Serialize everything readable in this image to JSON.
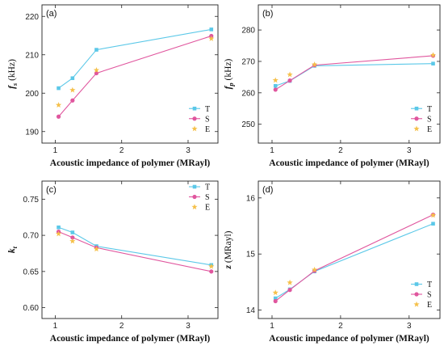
{
  "chart_data": [
    {
      "panel": "(a)",
      "type": "line",
      "xlabel": "Acoustic impedance of polymer (MRayl)",
      "ylabel": "fs (kHz)",
      "ylabel_main": "f",
      "ylabel_sub": "s",
      "ylabel_unit": " (kHz)",
      "xlim": [
        0.8,
        3.45
      ],
      "ylim": [
        187,
        223
      ],
      "xticks": [
        1,
        2,
        3
      ],
      "yticks": [
        190,
        200,
        210,
        220
      ],
      "legend_position": "right",
      "series": [
        {
          "name": "T",
          "marker": "square",
          "color": "#5bc8e8",
          "line": true,
          "x": [
            1.05,
            1.26,
            1.62,
            3.35
          ],
          "y": [
            201.3,
            203.9,
            211.3,
            216.6
          ]
        },
        {
          "name": "S",
          "marker": "circle",
          "color": "#e0569e",
          "line": true,
          "x": [
            1.05,
            1.26,
            1.62,
            3.35
          ],
          "y": [
            193.9,
            198.1,
            205.2,
            214.9
          ]
        },
        {
          "name": "E",
          "marker": "star",
          "color": "#f5c04a",
          "line": false,
          "x": [
            1.05,
            1.26,
            1.62,
            3.35
          ],
          "y": [
            196.9,
            200.8,
            206.0,
            214.2
          ]
        }
      ]
    },
    {
      "panel": "(b)",
      "type": "line",
      "xlabel": "Acoustic impedance of polymer (MRayl)",
      "ylabel": "fp (kHz)",
      "ylabel_main": "f",
      "ylabel_sub": "p",
      "ylabel_unit": " (kHz)",
      "xlim": [
        0.8,
        3.45
      ],
      "ylim": [
        244,
        288
      ],
      "xticks": [
        1,
        2,
        3
      ],
      "yticks": [
        250,
        260,
        270,
        280
      ],
      "legend_position": "right",
      "series": [
        {
          "name": "T",
          "marker": "square",
          "color": "#5bc8e8",
          "line": true,
          "x": [
            1.05,
            1.26,
            1.62,
            3.35
          ],
          "y": [
            262.2,
            263.8,
            268.6,
            269.3
          ]
        },
        {
          "name": "S",
          "marker": "circle",
          "color": "#e0569e",
          "line": true,
          "x": [
            1.05,
            1.26,
            1.62,
            3.35
          ],
          "y": [
            261.0,
            263.9,
            268.8,
            271.8
          ]
        },
        {
          "name": "E",
          "marker": "star",
          "color": "#f5c04a",
          "line": false,
          "x": [
            1.05,
            1.26,
            1.62,
            3.35
          ],
          "y": [
            264.0,
            265.8,
            269.0,
            272.0
          ]
        }
      ]
    },
    {
      "panel": "(c)",
      "type": "line",
      "xlabel": "Acoustic impedance of polymer (MRayl)",
      "ylabel": "kt",
      "ylabel_main": "k",
      "ylabel_sub": "t",
      "ylabel_unit": "",
      "xlim": [
        0.8,
        3.45
      ],
      "ylim": [
        0.585,
        0.775
      ],
      "xticks": [
        1,
        2,
        3
      ],
      "yticks": [
        0.6,
        0.65,
        0.7,
        0.75
      ],
      "ytick_labels": [
        "0.60",
        "0.65",
        "0.70",
        "0.75"
      ],
      "legend_position": "top-right",
      "series": [
        {
          "name": "T",
          "marker": "square",
          "color": "#5bc8e8",
          "line": true,
          "x": [
            1.05,
            1.26,
            1.62,
            3.35
          ],
          "y": [
            0.711,
            0.704,
            0.685,
            0.659
          ]
        },
        {
          "name": "S",
          "marker": "circle",
          "color": "#e0569e",
          "line": true,
          "x": [
            1.05,
            1.26,
            1.62,
            3.35
          ],
          "y": [
            0.705,
            0.697,
            0.683,
            0.65
          ]
        },
        {
          "name": "E",
          "marker": "star",
          "color": "#f5c04a",
          "line": false,
          "x": [
            1.05,
            1.26,
            1.62,
            3.35
          ],
          "y": [
            0.702,
            0.692,
            0.681,
            0.657
          ]
        }
      ]
    },
    {
      "panel": "(d)",
      "type": "line",
      "xlabel": "Acoustic impedance of polymer (MRayl)",
      "ylabel": "z (MRayl)",
      "ylabel_main": "z",
      "ylabel_sub": "",
      "ylabel_unit": " (MRayl)",
      "xlim": [
        0.8,
        3.45
      ],
      "ylim": [
        13.85,
        16.3
      ],
      "xticks": [
        1,
        2,
        3
      ],
      "yticks": [
        14,
        15,
        16
      ],
      "legend_position": "right",
      "series": [
        {
          "name": "T",
          "marker": "square",
          "color": "#5bc8e8",
          "line": true,
          "x": [
            1.05,
            1.26,
            1.62,
            3.35
          ],
          "y": [
            14.21,
            14.37,
            14.69,
            15.54
          ]
        },
        {
          "name": "S",
          "marker": "circle",
          "color": "#e0569e",
          "line": true,
          "x": [
            1.05,
            1.26,
            1.62,
            3.35
          ],
          "y": [
            14.16,
            14.36,
            14.7,
            15.7
          ]
        },
        {
          "name": "E",
          "marker": "star",
          "color": "#f5c04a",
          "line": false,
          "x": [
            1.05,
            1.26,
            1.62,
            3.35
          ],
          "y": [
            14.31,
            14.49,
            14.72,
            15.69
          ]
        }
      ]
    }
  ]
}
